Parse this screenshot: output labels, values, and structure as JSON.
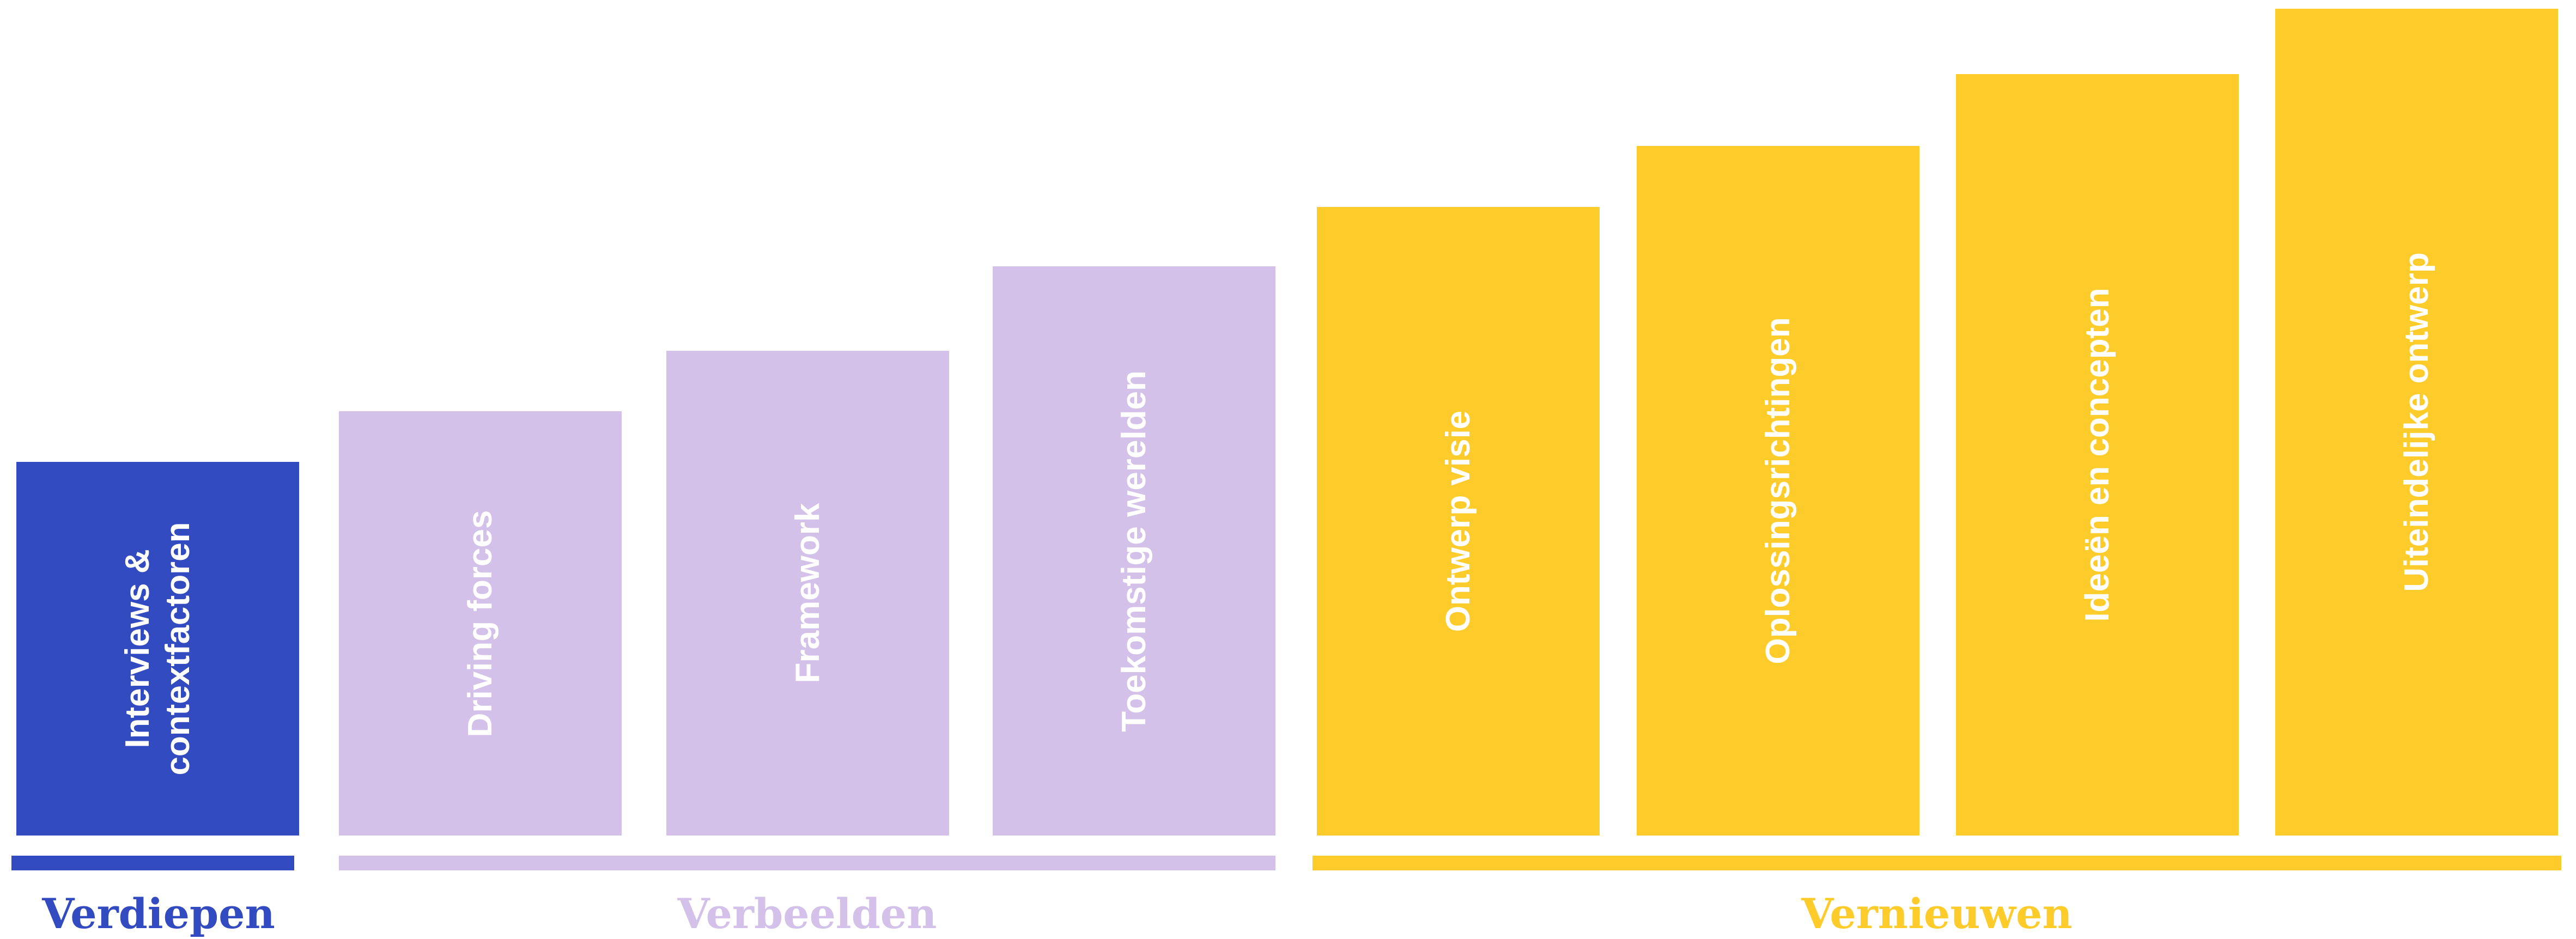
{
  "colors": {
    "verdiepen": "#324BC1",
    "verbeelden": "#D3C1E9",
    "vernieuwen": "#FDCB2A",
    "bar_text": "#FFFFFF",
    "background": "#FFFFFF"
  },
  "groups": [
    {
      "label": "Verdiepen",
      "color_key": "verdiepen"
    },
    {
      "label": "Verbeelden",
      "color_key": "verbeelden"
    },
    {
      "label": "Vernieuwen",
      "color_key": "vernieuwen"
    }
  ],
  "steps": [
    {
      "lines": [
        "Interviews &",
        "contextfactoren"
      ],
      "group": "Verdiepen"
    },
    {
      "lines": [
        "Driving forces"
      ],
      "group": "Verbeelden"
    },
    {
      "lines": [
        "Framework"
      ],
      "group": "Verbeelden"
    },
    {
      "lines": [
        "Toekomstige werelden"
      ],
      "group": "Verbeelden"
    },
    {
      "lines": [
        "Ontwerp visie"
      ],
      "group": "Vernieuwen"
    },
    {
      "lines": [
        "Oplossingsrichtingen"
      ],
      "group": "Vernieuwen"
    },
    {
      "lines": [
        "Ideeën en concepten"
      ],
      "group": "Vernieuwen"
    },
    {
      "lines": [
        "Uiteindelijke ontwerp"
      ],
      "group": "Vernieuwen"
    }
  ]
}
